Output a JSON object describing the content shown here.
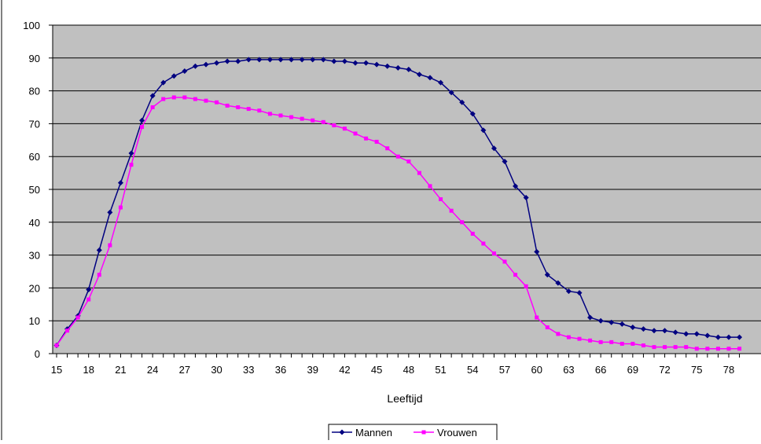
{
  "chart_data": {
    "type": "line",
    "xlabel": "Leeftijd",
    "ylabel": "",
    "ylim": [
      0,
      100
    ],
    "yticks": [
      0,
      10,
      20,
      30,
      40,
      50,
      60,
      70,
      80,
      90,
      100
    ],
    "xticks": [
      15,
      18,
      21,
      24,
      27,
      30,
      33,
      36,
      39,
      42,
      45,
      48,
      51,
      54,
      57,
      60,
      63,
      66,
      69,
      72,
      75,
      78
    ],
    "x": [
      15,
      16,
      17,
      18,
      19,
      20,
      21,
      22,
      23,
      24,
      25,
      26,
      27,
      28,
      29,
      30,
      31,
      32,
      33,
      34,
      35,
      36,
      37,
      38,
      39,
      40,
      41,
      42,
      43,
      44,
      45,
      46,
      47,
      48,
      49,
      50,
      51,
      52,
      53,
      54,
      55,
      56,
      57,
      58,
      59,
      60,
      61,
      62,
      63,
      64,
      65,
      66,
      67,
      68,
      69,
      70,
      71,
      72,
      73,
      74,
      75,
      76,
      77,
      78,
      79
    ],
    "grid": true,
    "legend_position": "bottom",
    "plot_background": "#c0c0c0",
    "series": [
      {
        "name": "Mannen",
        "color": "#000080",
        "marker": "diamond",
        "values": [
          2.5,
          7.5,
          11.5,
          19.5,
          31.5,
          43,
          52,
          61,
          71,
          78.5,
          82.5,
          84.5,
          86,
          87.5,
          88,
          88.5,
          89,
          89,
          89.5,
          89.5,
          89.5,
          89.5,
          89.5,
          89.5,
          89.5,
          89.5,
          89,
          89,
          88.5,
          88.5,
          88,
          87.5,
          87,
          86.5,
          85,
          84,
          82.5,
          79.5,
          76.5,
          73,
          68,
          62.5,
          58.5,
          51,
          47.5,
          31,
          24,
          21.5,
          19,
          18.5,
          11,
          10,
          9.5,
          9,
          8,
          7.5,
          7,
          7,
          6.5,
          6,
          6,
          5.5,
          5,
          5,
          5
        ]
      },
      {
        "name": "Vrouwen",
        "color": "#ff00ff",
        "marker": "square",
        "values": [
          2.5,
          7,
          11,
          16.5,
          24,
          33,
          44.5,
          57.5,
          69,
          75,
          77.5,
          78,
          78,
          77.5,
          77,
          76.5,
          75.5,
          75,
          74.5,
          74,
          73,
          72.5,
          72,
          71.5,
          71,
          70.5,
          69.5,
          68.5,
          67,
          65.5,
          64.5,
          62.5,
          60,
          58.5,
          55,
          51,
          47,
          43.5,
          40,
          36.5,
          33.5,
          30.5,
          28,
          24,
          20.5,
          11,
          8,
          6,
          5,
          4.5,
          4,
          3.5,
          3.5,
          3,
          3,
          2.5,
          2,
          2,
          2,
          2,
          1.5,
          1.5,
          1.5,
          1.5,
          1.5
        ]
      }
    ]
  }
}
